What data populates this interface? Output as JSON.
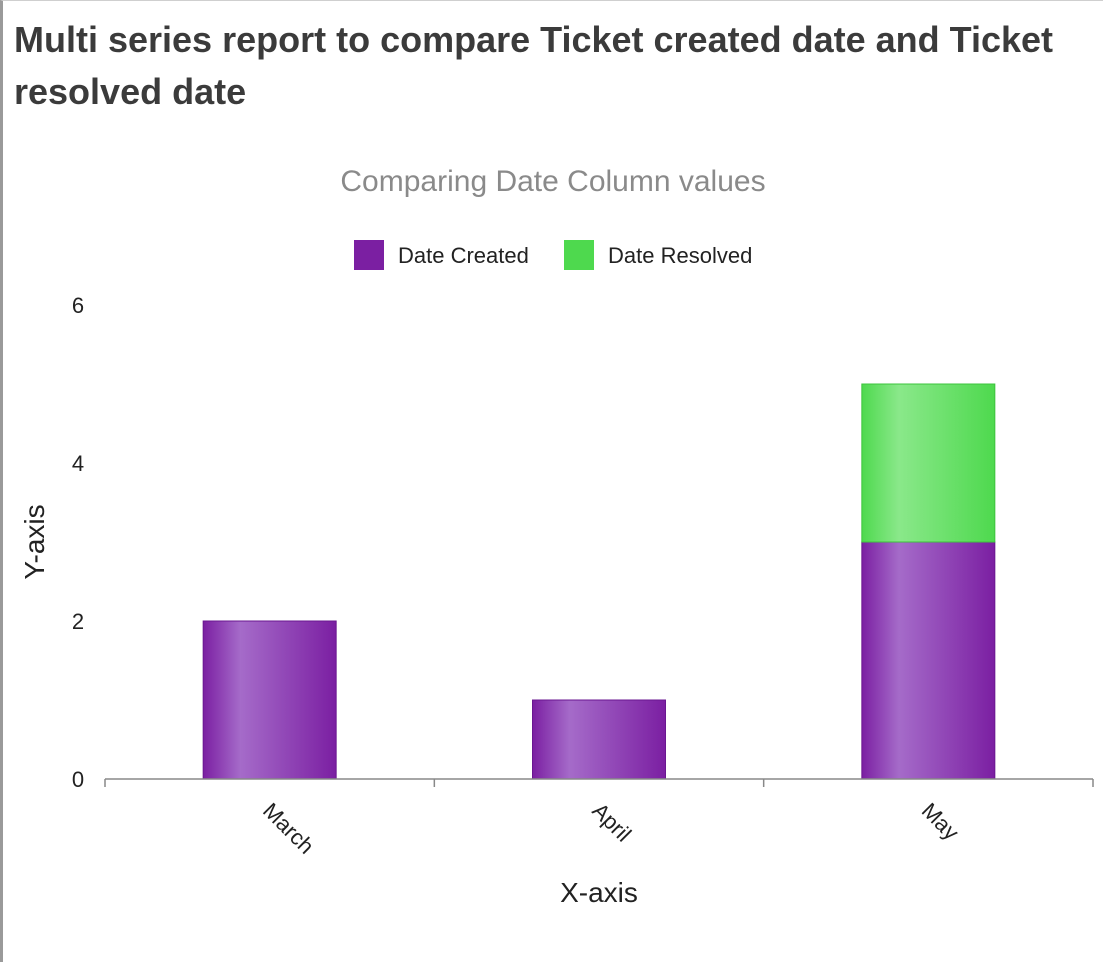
{
  "report": {
    "title": "Multi series report to compare Ticket created date and Ticket resolved date"
  },
  "colors": {
    "date_created": "#7b1fa2",
    "date_created_light": "#a56bc9",
    "date_resolved": "#4ed94e",
    "date_resolved_light": "#8ae88a",
    "axis": "#888888",
    "title_text": "#3b3b3b",
    "subtitle_text": "#8a8a8a"
  },
  "chart_data": {
    "type": "bar",
    "stacked": true,
    "title": "Comparing Date Column values",
    "xlabel": "X-axis",
    "ylabel": "Y-axis",
    "categories": [
      "March",
      "April",
      "May"
    ],
    "series": [
      {
        "name": "Date Created",
        "values": [
          2,
          1,
          3
        ]
      },
      {
        "name": "Date Resolved",
        "values": [
          0,
          0,
          2
        ]
      }
    ],
    "ylim": [
      0,
      6
    ],
    "yticks": [
      0,
      2,
      4,
      6
    ],
    "grid": false,
    "legend_position": "top"
  }
}
